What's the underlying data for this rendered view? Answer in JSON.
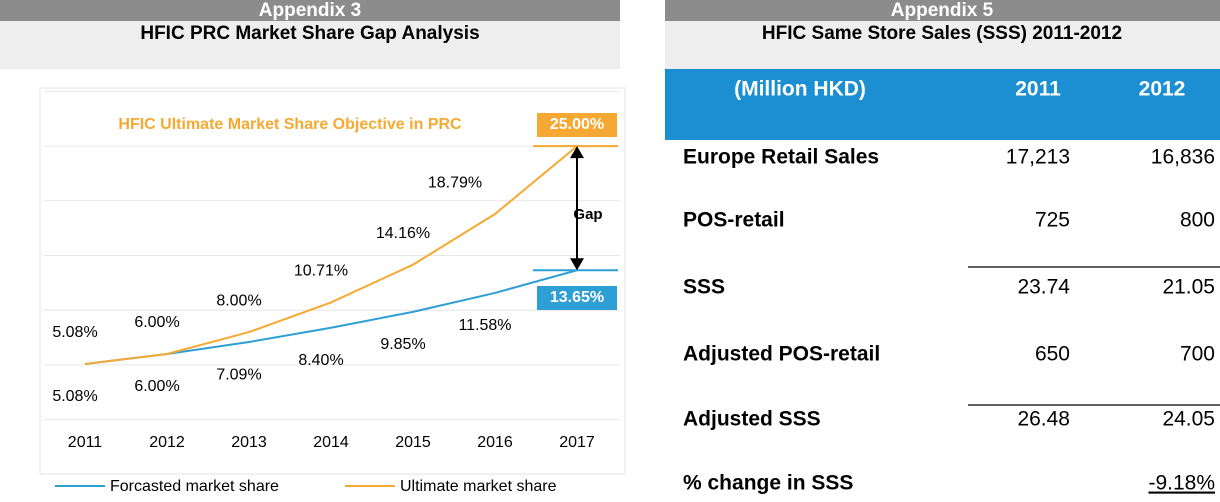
{
  "left": {
    "appendix": "Appendix 3",
    "title": "HFIC PRC Market Share Gap Analysis"
  },
  "chart_data": {
    "type": "line",
    "categories": [
      "2011",
      "2012",
      "2013",
      "2014",
      "2015",
      "2016",
      "2017"
    ],
    "series": [
      {
        "name": "Forcasted market share",
        "color": "#2e9fd4",
        "values": [
          5.08,
          6.0,
          7.09,
          8.4,
          9.85,
          11.58,
          13.65
        ],
        "value_labels": [
          "5.08%",
          "6.00%",
          "7.09%",
          "8.40%",
          "9.85%",
          "11.58%",
          "13.65%"
        ]
      },
      {
        "name": "Ultimate market share",
        "color": "#f5a932",
        "values": [
          5.08,
          6.0,
          8.0,
          10.71,
          14.16,
          18.79,
          25.0
        ],
        "value_labels": [
          "5.08%",
          "6.00%",
          "8.00%",
          "10.71%",
          "14.16%",
          "18.79%",
          "25.00%"
        ]
      }
    ],
    "ylim": [
      0,
      30
    ],
    "yticks": [
      0,
      5,
      10,
      15,
      20,
      25,
      30
    ],
    "grid": true,
    "legend": "bottom",
    "annotations": {
      "objective": "HFIC Ultimate Market Share Objective in PRC",
      "gap": "Gap"
    }
  },
  "right": {
    "appendix": "Appendix 5",
    "title": "HFIC Same Store Sales (SSS) 2011-2012",
    "table": {
      "header": [
        "(Million HKD)",
        "2011",
        "2012"
      ],
      "rows": [
        [
          "Europe Retail Sales",
          "17,213",
          "16,836"
        ],
        [
          "POS-retail",
          "725",
          "800"
        ],
        [
          "SSS",
          "23.74",
          "21.05"
        ],
        [
          "Adjusted POS-retail",
          "650",
          "700"
        ],
        [
          "Adjusted SSS",
          "26.48",
          "24.05"
        ],
        [
          "% change in SSS",
          "",
          "-9.18%"
        ]
      ]
    }
  }
}
